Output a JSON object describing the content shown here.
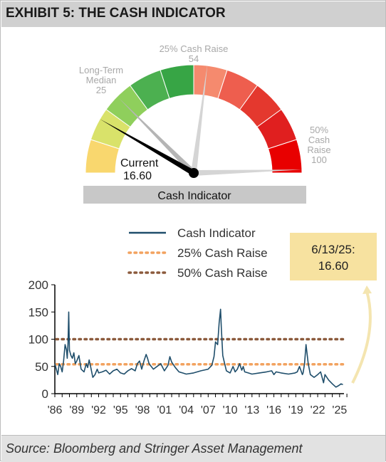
{
  "exhibit_title": "EXHIBIT 5: THE CASH INDICATOR",
  "source": "Source: Bloomberg and Stringer Asset Management",
  "colors": {
    "title_bar": "#d0d0d0",
    "line": "#1f4e6b",
    "cash_raise_25": "#f2a25f",
    "cash_raise_50": "#8b5a3c",
    "callout_fill": "#f7e2a0",
    "arrow": "#f4e5b0",
    "gauge_segments": [
      "#f9d76e",
      "#d9e26a",
      "#8fcf5c",
      "#4cb050",
      "#37a545",
      "#f58a6e",
      "#ee5e4e",
      "#e4382e",
      "#e01f1f",
      "#e80000"
    ]
  },
  "gauge": {
    "label": "Cash Indicator",
    "current_label": "Current",
    "current_value": "16.60",
    "min": 0,
    "max": 100,
    "current": 16.6,
    "markers": [
      {
        "id": "median",
        "value": 25,
        "label_lines": [
          "Long-Term",
          "Median",
          "25"
        ]
      },
      {
        "id": "raise25",
        "value": 54,
        "label_lines": [
          "25% Cash Raise",
          "54"
        ]
      },
      {
        "id": "raise50",
        "value": 100,
        "label_lines": [
          "50%",
          "Cash",
          "Raise",
          "100"
        ]
      }
    ]
  },
  "chart_data": {
    "type": "line",
    "title": "",
    "xlabel": "",
    "ylabel": "",
    "ylim": [
      0,
      200
    ],
    "xlim": [
      1986,
      2025.6
    ],
    "yticks": [
      "0",
      "50",
      "100",
      "150",
      "200"
    ],
    "xtick_labels": [
      "'86",
      "'89",
      "'92",
      "'95",
      "'98",
      "'01",
      "'04",
      "'07",
      "'10",
      "'13",
      "'16",
      "'19",
      "'22",
      "'25"
    ],
    "grid": false,
    "legend_position": "top-left",
    "series": [
      {
        "name": "Cash Indicator",
        "x": [
          1986.0,
          1986.2,
          1986.4,
          1986.6,
          1986.8,
          1987.0,
          1987.2,
          1987.4,
          1987.6,
          1987.7,
          1987.8,
          1987.9,
          1988.0,
          1988.2,
          1988.4,
          1988.6,
          1988.8,
          1989.0,
          1989.3,
          1989.6,
          1990.0,
          1990.3,
          1990.5,
          1990.7,
          1990.9,
          1991.2,
          1991.5,
          1991.8,
          1992.0,
          1992.5,
          1993.0,
          1993.5,
          1994.0,
          1994.5,
          1995.0,
          1995.5,
          1996.0,
          1996.5,
          1997.0,
          1997.3,
          1997.6,
          1997.9,
          1998.2,
          1998.5,
          1998.7,
          1998.9,
          1999.2,
          1999.5,
          2000.0,
          2000.5,
          2001.0,
          2001.5,
          2001.75,
          2002.0,
          2002.5,
          2003.0,
          2003.5,
          2004.0,
          2005.0,
          2006.0,
          2007.0,
          2007.5,
          2007.8,
          2008.0,
          2008.3,
          2008.5,
          2008.7,
          2008.8,
          2009.0,
          2009.2,
          2009.5,
          2010.0,
          2010.4,
          2010.7,
          2011.0,
          2011.3,
          2011.6,
          2011.8,
          2012.0,
          2012.5,
          2013.0,
          2014.0,
          2015.0,
          2015.7,
          2016.0,
          2016.3,
          2017.0,
          2018.0,
          2018.9,
          2019.2,
          2019.5,
          2019.9,
          2020.0,
          2020.2,
          2020.4,
          2020.7,
          2021.0,
          2021.5,
          2022.0,
          2022.4,
          2022.8,
          2023.0,
          2023.5,
          2024.0,
          2024.5,
          2024.9,
          2025.2,
          2025.45
        ],
        "y": [
          55,
          45,
          35,
          55,
          50,
          40,
          60,
          90,
          80,
          65,
          92,
          150,
          80,
          70,
          65,
          75,
          55,
          60,
          70,
          45,
          40,
          55,
          48,
          62,
          50,
          30,
          35,
          45,
          38,
          40,
          43,
          36,
          42,
          45,
          38,
          36,
          42,
          46,
          42,
          55,
          60,
          45,
          60,
          72,
          65,
          55,
          50,
          45,
          50,
          55,
          42,
          52,
          68,
          58,
          48,
          40,
          38,
          36,
          38,
          42,
          45,
          52,
          68,
          95,
          90,
          130,
          155,
          120,
          70,
          58,
          42,
          38,
          50,
          40,
          45,
          55,
          43,
          50,
          40,
          38,
          36,
          38,
          40,
          42,
          35,
          40,
          38,
          36,
          38,
          40,
          50,
          35,
          38,
          55,
          90,
          55,
          35,
          30,
          35,
          40,
          20,
          35,
          25,
          18,
          12,
          15,
          18,
          16.6
        ]
      },
      {
        "name": "25% Cash Raise",
        "constant": 54
      },
      {
        "name": "50% Cash Raise",
        "constant": 100
      }
    ],
    "callout": {
      "date": "6/13/25:",
      "value": "16.60"
    }
  }
}
